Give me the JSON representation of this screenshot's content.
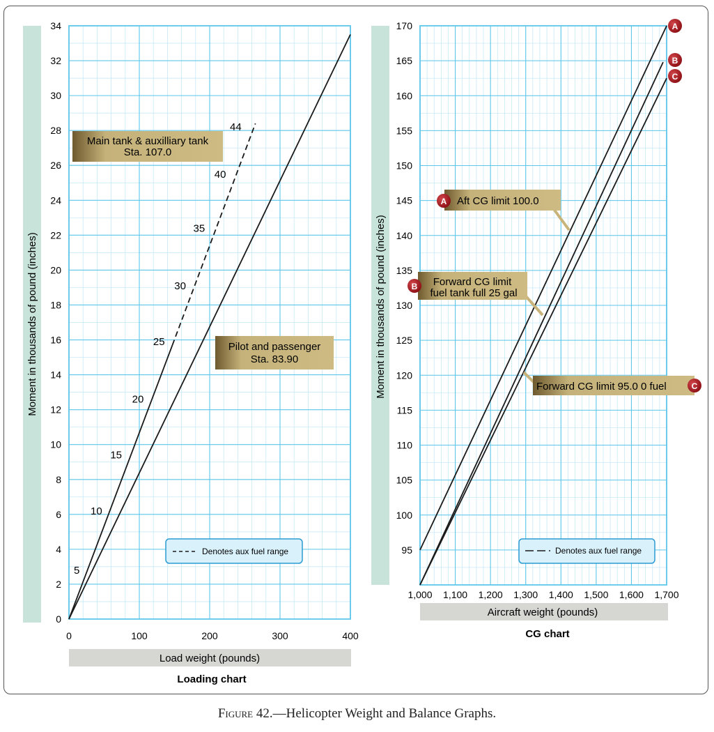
{
  "colors": {
    "grid_minor": "#bfe6f5",
    "grid_major": "#5ec6ea",
    "axis_band": "#c7e3da",
    "xlabel_band": "#d6d6d3",
    "callout_fill": "#c8b47a",
    "callout_dark": "#7d6a3c",
    "legend_fill": "#d9f1fb",
    "legend_border": "#2b9bd3",
    "marker_red": "#a3161c",
    "line": "#1a1a1a"
  },
  "caption": {
    "figure_label": "Figure 42.",
    "title": "—Helicopter Weight and Balance Graphs."
  },
  "chart_data": [
    {
      "type": "line",
      "title": "Loading chart",
      "xlabel": "Load weight (pounds)",
      "ylabel": "Moment in thousands of pound (inches)",
      "xlim": [
        0,
        400
      ],
      "ylim": [
        0,
        34
      ],
      "xticks": [
        0,
        100,
        200,
        300,
        400
      ],
      "xtick_labels": [
        "0",
        "100",
        "200",
        "300",
        "400"
      ],
      "yticks": [
        0,
        2,
        4,
        6,
        8,
        10,
        12,
        14,
        16,
        18,
        20,
        22,
        24,
        26,
        28,
        30,
        32,
        34
      ],
      "ytick_labels": [
        "0",
        "2",
        "4",
        "6",
        "8",
        "10",
        "12",
        "14",
        "16",
        "18",
        "20",
        "22",
        "24",
        "26",
        "28",
        "30",
        "32",
        "34"
      ],
      "grid": true,
      "series": [
        {
          "name": "Main tank & auxilliary tank Sta. 107.0",
          "style": "solid",
          "x": [
            0,
            147
          ],
          "y": [
            0,
            15.7
          ]
        },
        {
          "name": "Main tank & auxilliary tank Sta. 107.0",
          "style": "dashed",
          "x": [
            147,
            265
          ],
          "y": [
            15.7,
            28.4
          ]
        },
        {
          "name": "Pilot and passenger Sta. 83.90",
          "style": "solid",
          "x": [
            0,
            400
          ],
          "y": [
            0,
            33.5
          ]
        }
      ],
      "gallon_labels": [
        {
          "text": "5",
          "x": 11,
          "y": 2.8
        },
        {
          "text": "10",
          "x": 39,
          "y": 6.2
        },
        {
          "text": "15",
          "x": 67,
          "y": 9.4
        },
        {
          "text": "20",
          "x": 98,
          "y": 12.6
        },
        {
          "text": "25",
          "x": 128,
          "y": 15.9
        },
        {
          "text": "30",
          "x": 158,
          "y": 19.1
        },
        {
          "text": "35",
          "x": 185,
          "y": 22.4
        },
        {
          "text": "40",
          "x": 215,
          "y": 25.5
        },
        {
          "text": "44",
          "x": 237,
          "y": 28.2
        }
      ],
      "callouts": [
        {
          "text": [
            "Main tank & auxilliary tank",
            "Sta. 107.0"
          ]
        },
        {
          "text": [
            "Pilot and passenger",
            "Sta. 83.90"
          ]
        }
      ],
      "legend": {
        "text": "Denotes aux fuel range",
        "placement": "bottom-right"
      }
    },
    {
      "type": "line",
      "title": "CG chart",
      "xlabel": "Aircraft weight (pounds)",
      "ylabel": "Moment in thousands of pound (inches)",
      "xlim": [
        1000,
        1700
      ],
      "ylim": [
        90,
        170
      ],
      "xticks": [
        1000,
        1100,
        1200,
        1300,
        1400,
        1500,
        1600,
        1700
      ],
      "xtick_labels": [
        "1,000",
        "1,100",
        "1,200",
        "1,300",
        "1,400",
        "1,500",
        "1,600",
        "1,700"
      ],
      "yticks": [
        95,
        100,
        105,
        110,
        115,
        120,
        125,
        130,
        135,
        140,
        145,
        150,
        155,
        160,
        165,
        170
      ],
      "ytick_labels": [
        "95",
        "100",
        "105",
        "110",
        "115",
        "120",
        "125",
        "130",
        "135",
        "140",
        "145",
        "150",
        "155",
        "160",
        "165",
        "170"
      ],
      "grid": true,
      "series": [
        {
          "name": "A",
          "label": "Aft CG limit 100.0",
          "x": [
            1000,
            1700
          ],
          "y": [
            95,
            170
          ]
        },
        {
          "name": "B",
          "label": [
            "Forward CG limit",
            "fuel tank full 25 gal"
          ],
          "x": [
            1000,
            1690
          ],
          "y": [
            90,
            164.8
          ]
        },
        {
          "name": "C",
          "label": "Forward CG limit 95.0  0 fuel",
          "x": [
            1000,
            1700
          ],
          "y": [
            90,
            162.5
          ]
        }
      ],
      "legend": {
        "text": "Denotes aux fuel range",
        "placement": "bottom-right"
      }
    }
  ]
}
